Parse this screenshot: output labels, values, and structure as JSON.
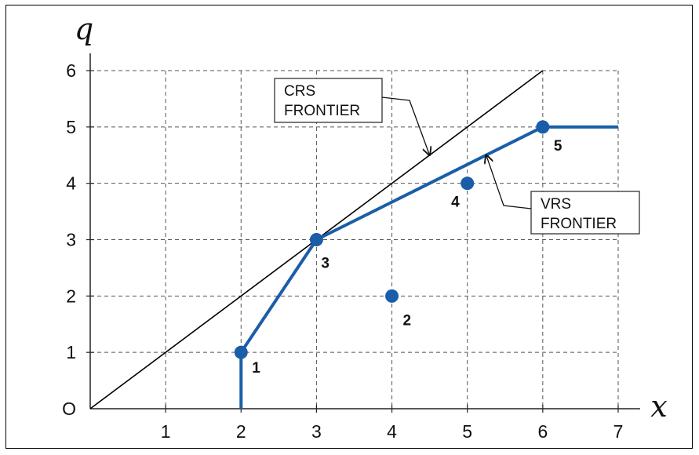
{
  "chart_data": {
    "type": "line",
    "title": "",
    "xlabel": "x",
    "ylabel": "q",
    "origin_label": "O",
    "xlim": [
      0,
      7
    ],
    "ylim": [
      0,
      6
    ],
    "x_ticks": [
      "1",
      "2",
      "3",
      "4",
      "5",
      "6",
      "7"
    ],
    "y_ticks": [
      "1",
      "2",
      "3",
      "4",
      "5",
      "6"
    ],
    "grid": true,
    "points": [
      {
        "label": "1",
        "x": 2,
        "y": 1
      },
      {
        "label": "2",
        "x": 4,
        "y": 2
      },
      {
        "label": "3",
        "x": 3,
        "y": 3
      },
      {
        "label": "4",
        "x": 5,
        "y": 4
      },
      {
        "label": "5",
        "x": 6,
        "y": 5
      }
    ],
    "series": [
      {
        "name": "CRS FRONTIER",
        "x": [
          0,
          6
        ],
        "y": [
          0,
          6
        ],
        "color": "#000000"
      },
      {
        "name": "VRS FRONTIER",
        "x": [
          2,
          2,
          3,
          6,
          7
        ],
        "y": [
          0,
          1,
          3,
          5,
          5
        ],
        "color": "#1a5ea8"
      }
    ],
    "annotations": [
      {
        "lines": [
          "CRS",
          "FRONTIER"
        ],
        "points_to": [
          4.5,
          4.5
        ]
      },
      {
        "lines": [
          "VRS",
          "FRONTIER"
        ],
        "points_to": [
          5.25,
          4.5
        ]
      }
    ],
    "point_color": "#1a5ea8"
  }
}
